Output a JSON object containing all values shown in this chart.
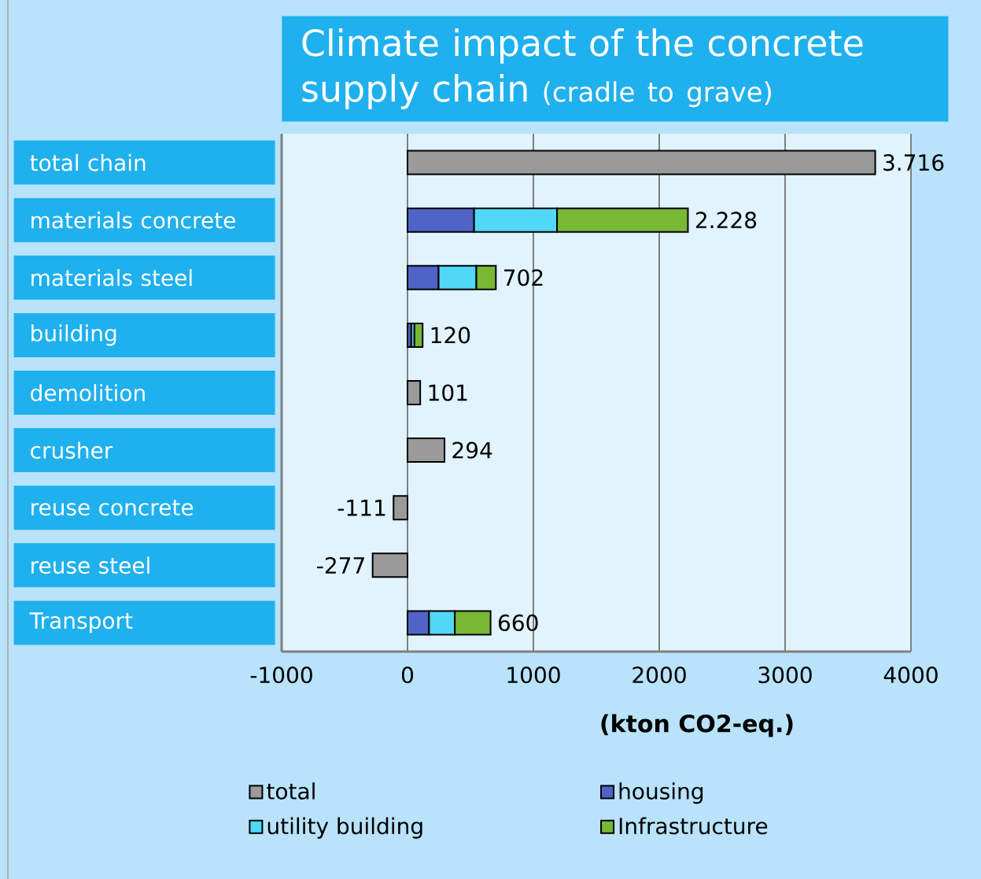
{
  "chart_data": {
    "type": "bar",
    "orientation": "horizontal",
    "stacked": true,
    "title": "Climate impact of the concrete supply chain",
    "subtitle": "(cradle to grave)",
    "xlabel": "(kton CO2-eq.)",
    "categories": [
      "total chain",
      "materials concrete",
      "materials steel",
      "building",
      "demolition",
      "crusher",
      "reuse concrete",
      "reuse steel",
      "Transport"
    ],
    "series": [
      {
        "name": "total",
        "color": "#9a9a9a",
        "values": [
          3716,
          null,
          null,
          null,
          101,
          294,
          -111,
          -277,
          null
        ]
      },
      {
        "name": "housing",
        "color": "#5064c8",
        "values": [
          null,
          529,
          247,
          30,
          null,
          null,
          null,
          null,
          171
        ]
      },
      {
        "name": "utility building",
        "color": "#50d8f6",
        "values": [
          null,
          659,
          300,
          25,
          null,
          null,
          null,
          null,
          205
        ]
      },
      {
        "name": "Infrastructure",
        "color": "#78b834",
        "values": [
          null,
          1040,
          155,
          65,
          null,
          null,
          null,
          null,
          284
        ]
      }
    ],
    "totals": [
      "3.716",
      "2.228",
      "702",
      "120",
      "101",
      "294",
      "-111",
      "-277",
      "660"
    ],
    "xlim": [
      -1000,
      4000
    ],
    "xticks": [
      -1000,
      0,
      1000,
      2000,
      3000,
      4000
    ],
    "grid": "x",
    "legend": "bottom"
  }
}
